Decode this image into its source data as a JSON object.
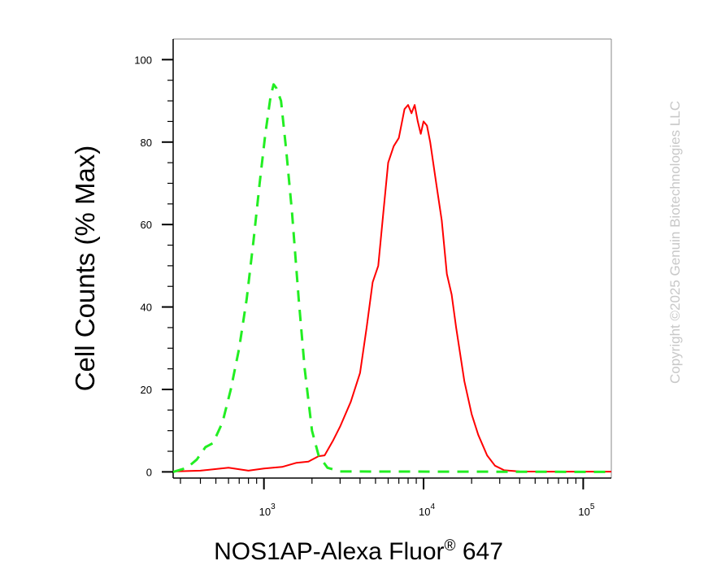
{
  "chart_data": {
    "type": "line",
    "xlabel": "NOS1AP-Alexa Fluor",
    "xlabel_superscript": "®",
    "xlabel_suffix": " 647",
    "ylabel": "Cell Counts (% Max)",
    "x_scale": "log",
    "xlim": [
      270,
      150000
    ],
    "ylim": [
      -1.5,
      105
    ],
    "x_ticks": [
      {
        "value": 1000,
        "base": "10",
        "exp": "3"
      },
      {
        "value": 10000,
        "base": "10",
        "exp": "4"
      },
      {
        "value": 100000,
        "base": "10",
        "exp": "5"
      }
    ],
    "y_ticks": [
      0,
      20,
      40,
      60,
      80,
      100
    ],
    "series": [
      {
        "color": "#ff0000",
        "style": "solid",
        "points": [
          [
            270,
            0.1
          ],
          [
            400,
            0.3
          ],
          [
            600,
            1.0
          ],
          [
            800,
            0.3
          ],
          [
            1000,
            0.8
          ],
          [
            1300,
            1.2
          ],
          [
            1600,
            2.2
          ],
          [
            1900,
            2.5
          ],
          [
            2200,
            3.8
          ],
          [
            2400,
            4.0
          ],
          [
            2700,
            7.5
          ],
          [
            3000,
            11
          ],
          [
            3500,
            17
          ],
          [
            4000,
            24
          ],
          [
            4400,
            35
          ],
          [
            4800,
            46
          ],
          [
            5200,
            50
          ],
          [
            5600,
            63
          ],
          [
            6000,
            75
          ],
          [
            6500,
            79
          ],
          [
            7000,
            81
          ],
          [
            7600,
            88
          ],
          [
            8000,
            89
          ],
          [
            8400,
            87
          ],
          [
            8800,
            89
          ],
          [
            9200,
            85
          ],
          [
            9600,
            82
          ],
          [
            10000,
            85
          ],
          [
            10500,
            84
          ],
          [
            11000,
            80
          ],
          [
            12000,
            70
          ],
          [
            13000,
            61
          ],
          [
            14000,
            48
          ],
          [
            15000,
            43
          ],
          [
            16000,
            35
          ],
          [
            18000,
            22
          ],
          [
            20000,
            14
          ],
          [
            22000,
            9
          ],
          [
            25000,
            4
          ],
          [
            28000,
            1.5
          ],
          [
            32000,
            0.4
          ],
          [
            40000,
            0.1
          ],
          [
            60000,
            0.05
          ],
          [
            150000,
            0.05
          ]
        ]
      },
      {
        "color": "#22ee22",
        "style": "dashed",
        "points": [
          [
            270,
            0
          ],
          [
            330,
            1
          ],
          [
            380,
            3
          ],
          [
            430,
            6
          ],
          [
            480,
            7
          ],
          [
            550,
            12
          ],
          [
            620,
            20
          ],
          [
            700,
            30
          ],
          [
            780,
            42
          ],
          [
            860,
            56
          ],
          [
            940,
            70
          ],
          [
            1020,
            82
          ],
          [
            1100,
            91
          ],
          [
            1150,
            94
          ],
          [
            1200,
            93
          ],
          [
            1280,
            90
          ],
          [
            1380,
            78
          ],
          [
            1500,
            63
          ],
          [
            1650,
            42
          ],
          [
            1800,
            25
          ],
          [
            2000,
            10
          ],
          [
            2200,
            4
          ],
          [
            2500,
            1
          ],
          [
            3000,
            0.1
          ],
          [
            150000,
            0
          ]
        ]
      }
    ]
  },
  "watermark": "Copyright ©2025 Genuin Biotechnologies LLC"
}
